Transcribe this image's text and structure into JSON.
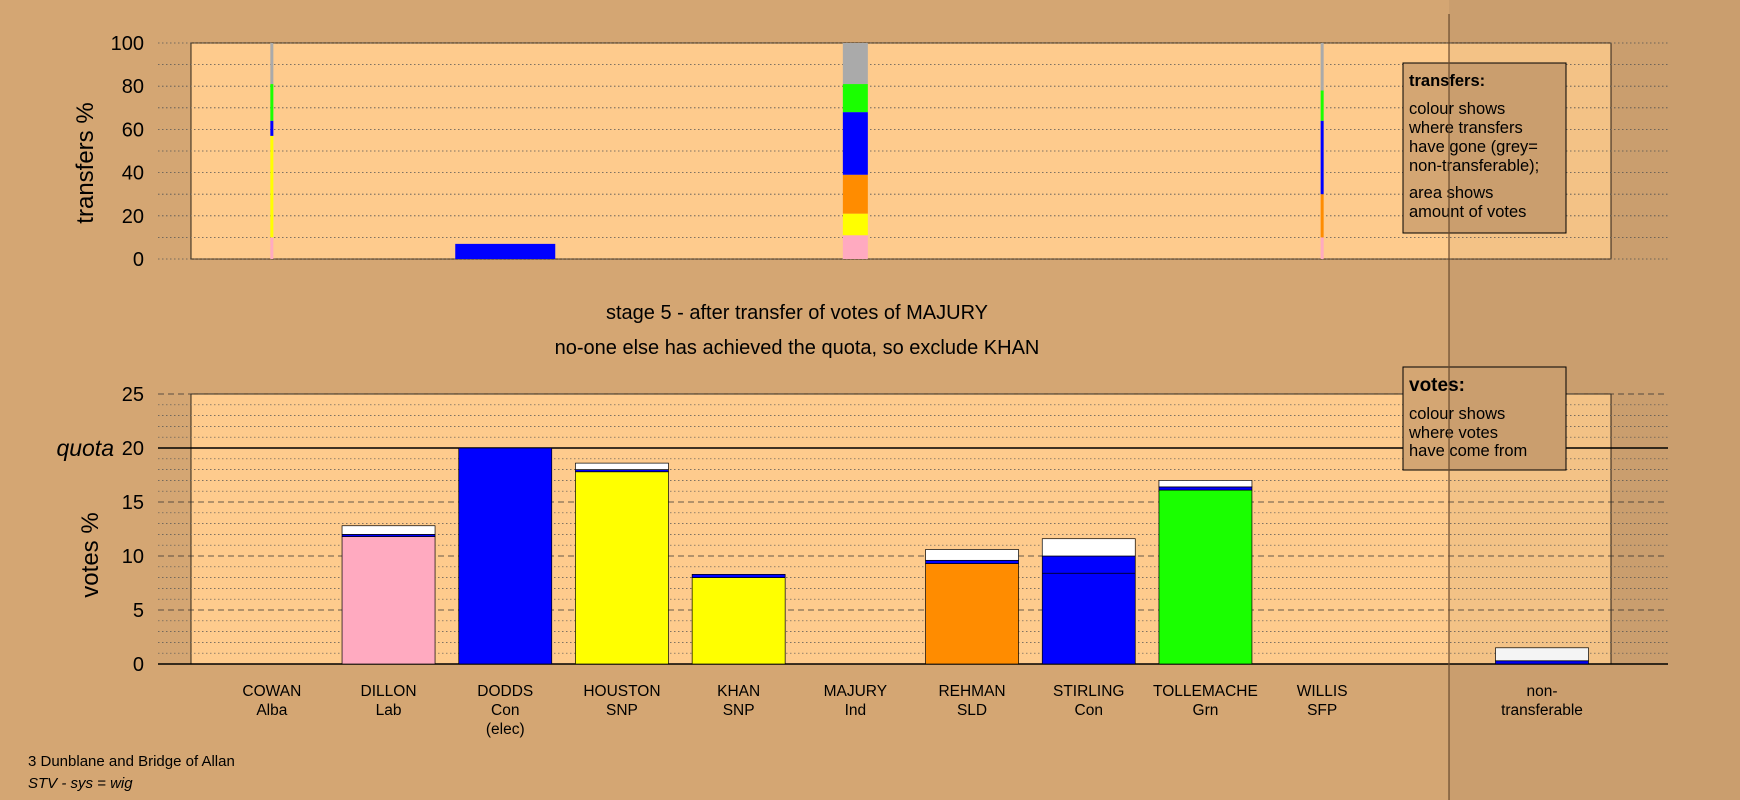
{
  "page": {
    "title_line1": "stage 5 - after transfer of votes of MAJURY",
    "title_line2": "no-one else has achieved the quota, so exclude KHAN",
    "footer_ward": "3 Dunblane and Bridge of Allan",
    "footer_system": "STV - sys = wig"
  },
  "colors": {
    "background": "#d4a673",
    "plot_bg": "#fecb8d",
    "Alba": "#bbbbbb",
    "Lab": "#ffaac0",
    "Con": "#0000ff",
    "SNP": "#ffff00",
    "Ind": "#bbbbbb",
    "SLD": "#ff8c00",
    "Grn": "#1aff00",
    "SFP": "#bbbbbb",
    "nontransferable": "#ffffff"
  },
  "legend_transfers": {
    "title": "transfers:",
    "lines1": [
      "colour shows",
      "where transfers",
      "have gone (grey=",
      "non-transferable);"
    ],
    "lines2": [
      "area shows",
      "amount of votes"
    ]
  },
  "legend_votes": {
    "title": "votes:",
    "lines": [
      "colour shows",
      "where votes",
      "have come from"
    ]
  },
  "chart_data": [
    {
      "type": "bar",
      "name": "transfers",
      "ylabel": "transfers %",
      "ylim": [
        0,
        100
      ],
      "yticks": [
        0,
        20,
        40,
        60,
        80,
        100
      ],
      "grid": true,
      "columns": [
        {
          "candidate": "COWAN",
          "width_share": 0.03,
          "segments": [
            {
              "to": "Lab",
              "from": 0,
              "to_value": 10
            },
            {
              "to": "SNP",
              "from": 10,
              "to_value": 57
            },
            {
              "to": "Con",
              "from": 57,
              "to_value": 64
            },
            {
              "to": "Grn",
              "from": 64,
              "to_value": 81
            },
            {
              "to": "nontransferable_grey",
              "from": 81,
              "to_value": 100
            }
          ]
        },
        {
          "candidate": "DODDS",
          "width_share": 1.0,
          "segments": [
            {
              "to": "Con",
              "from": 0,
              "to_value": 7
            }
          ]
        },
        {
          "candidate": "MAJURY",
          "width_share": 0.25,
          "segments": [
            {
              "to": "Lab",
              "from": 0,
              "to_value": 11
            },
            {
              "to": "SNP",
              "from": 11,
              "to_value": 21
            },
            {
              "to": "SLD",
              "from": 21,
              "to_value": 39
            },
            {
              "to": "Con",
              "from": 39,
              "to_value": 68
            },
            {
              "to": "Grn",
              "from": 68,
              "to_value": 81
            },
            {
              "to": "nontransferable_grey",
              "from": 81,
              "to_value": 100
            }
          ]
        },
        {
          "candidate": "WILLIS",
          "width_share": 0.03,
          "segments": [
            {
              "to": "Lab",
              "from": 0,
              "to_value": 10
            },
            {
              "to": "SLD",
              "from": 10,
              "to_value": 30
            },
            {
              "to": "Con",
              "from": 30,
              "to_value": 64
            },
            {
              "to": "Grn",
              "from": 64,
              "to_value": 78
            },
            {
              "to": "nontransferable_grey",
              "from": 78,
              "to_value": 100
            }
          ]
        }
      ]
    },
    {
      "type": "bar",
      "name": "votes",
      "ylabel": "votes %",
      "ylim": [
        0,
        25
      ],
      "yticks": [
        0,
        5,
        10,
        15,
        20,
        25
      ],
      "quota": 20,
      "quota_label": "quota",
      "grid": true,
      "categories": [
        {
          "name": "COWAN",
          "party": "Alba",
          "extra": ""
        },
        {
          "name": "DILLON",
          "party": "Lab",
          "extra": ""
        },
        {
          "name": "DODDS",
          "party": "Con",
          "extra": "(elec)"
        },
        {
          "name": "HOUSTON",
          "party": "SNP",
          "extra": ""
        },
        {
          "name": "KHAN",
          "party": "SNP",
          "extra": ""
        },
        {
          "name": "MAJURY",
          "party": "Ind",
          "extra": ""
        },
        {
          "name": "REHMAN",
          "party": "SLD",
          "extra": ""
        },
        {
          "name": "STIRLING",
          "party": "Con",
          "extra": ""
        },
        {
          "name": "TOLLEMACHE",
          "party": "Grn",
          "extra": ""
        },
        {
          "name": "WILLIS",
          "party": "SFP",
          "extra": ""
        }
      ],
      "values": [
        0,
        12.8,
        20.0,
        18.6,
        8.3,
        0,
        10.6,
        11.6,
        17.0,
        0
      ],
      "stacks": [
        [],
        [
          {
            "color": "Lab",
            "value": 11.8
          },
          {
            "color": "Con",
            "value": 0.2
          },
          {
            "color": "nontransferable",
            "value": 0.8
          }
        ],
        [
          {
            "color": "Con",
            "value": 20.0
          }
        ],
        [
          {
            "color": "SNP",
            "value": 17.8
          },
          {
            "color": "Con",
            "value": 0.2
          },
          {
            "color": "nontransferable",
            "value": 0.6
          }
        ],
        [
          {
            "color": "SNP",
            "value": 8.0
          },
          {
            "color": "Con",
            "value": 0.3
          }
        ],
        [],
        [
          {
            "color": "SLD",
            "value": 9.3
          },
          {
            "color": "Con",
            "value": 0.3
          },
          {
            "color": "nontransferable",
            "value": 1.0
          }
        ],
        [
          {
            "color": "Con",
            "value": 10.0
          },
          {
            "color": "nontransferable",
            "value": 1.6
          }
        ],
        [
          {
            "color": "Grn",
            "value": 16.1
          },
          {
            "color": "Con",
            "value": 0.3
          },
          {
            "color": "nontransferable",
            "value": 0.6
          }
        ],
        []
      ],
      "inner_lines": [
        {
          "candidate": "STIRLING",
          "value": 8.4
        }
      ],
      "nontransferable": {
        "label_line1": "non-",
        "label_line2": "transferable",
        "stack": [
          {
            "color": "Con",
            "value": 0.3
          },
          {
            "color": "nontransferable",
            "value": 1.2
          }
        ]
      }
    }
  ]
}
